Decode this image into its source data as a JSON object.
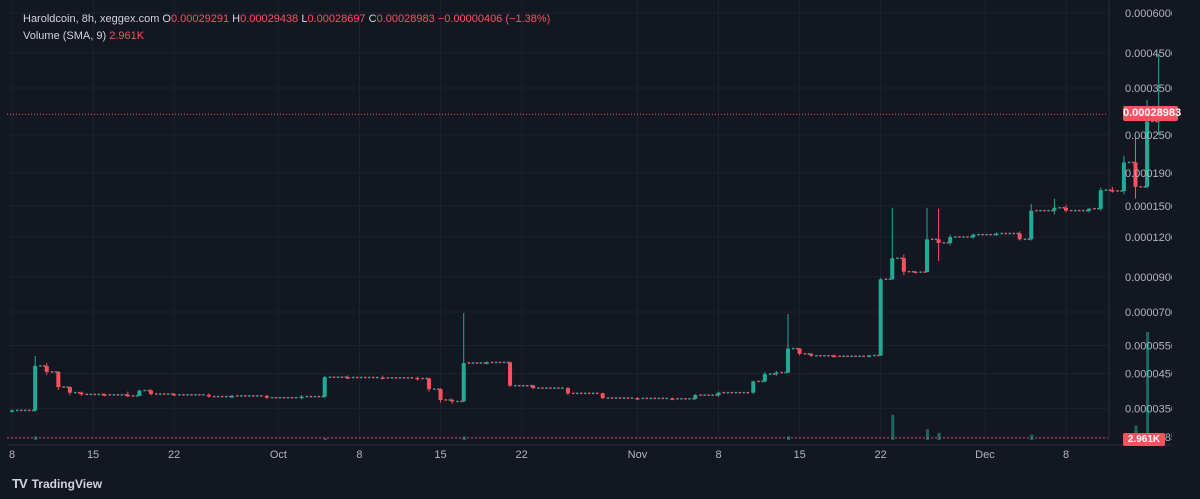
{
  "legend": {
    "symbol": "Haroldcoin, 8h, xeggex.com",
    "o_label": "O",
    "o_value": "0.00029291",
    "h_label": "H",
    "h_value": "0.00029438",
    "l_label": "L",
    "l_value": "0.00028697",
    "c_label": "C",
    "c_value": "0.00028983",
    "change": "−0.00000406 (−1.38%)",
    "volume_label": "Volume (SMA, 9)",
    "volume_value": "2.961K"
  },
  "price_tag": "0.00028983",
  "volume_tag": "2.961K",
  "brand": {
    "icon": "TV",
    "name": "TradingView"
  },
  "colors": {
    "bg": "#131722",
    "up": "#22ab94",
    "down": "#f7525f",
    "grid": "#1e222d",
    "text": "#b2b5be"
  },
  "chart_data": {
    "type": "candlestick",
    "scale": "log",
    "y_ticks": [
      "0.00060000",
      "0.00045000",
      "0.00035000",
      "0.00025000",
      "0.00019000",
      "0.00015000",
      "0.00012000",
      "0.00009000",
      "0.00007000",
      "0.00005500",
      "0.00004500",
      "0.00003500",
      "0.00002850"
    ],
    "y_tick_values": [
      0.0006,
      0.00045,
      0.00035,
      0.00025,
      0.00019,
      0.00015,
      0.00012,
      9e-05,
      7e-05,
      5.5e-05,
      4.5e-05,
      3.5e-05,
      2.85e-05
    ],
    "x_ticks": [
      "8",
      "15",
      "22",
      "Oct",
      "8",
      "15",
      "22",
      "Nov",
      "8",
      "15",
      "22",
      "Dec",
      "8"
    ],
    "x_tick_days": [
      8,
      15,
      22,
      31,
      38,
      45,
      52,
      62,
      69,
      76,
      83,
      92,
      99
    ],
    "last_price": 0.00028983,
    "candles": [
      [
        8,
        3.45e-05,
        3.48e-05,
        3.4e-05,
        3.45e-05
      ],
      [
        10,
        3.45e-05,
        5.1e-05,
        3.42e-05,
        4.75e-05
      ],
      [
        11,
        4.75e-05,
        4.85e-05,
        4.45e-05,
        4.55e-05
      ],
      [
        12,
        4.55e-05,
        4.58e-05,
        4e-05,
        4.08e-05
      ],
      [
        13,
        4.08e-05,
        4.1e-05,
        3.85e-05,
        3.92e-05
      ],
      [
        14,
        3.92e-05,
        3.95e-05,
        3.83e-05,
        3.87e-05
      ],
      [
        16,
        3.87e-05,
        3.9e-05,
        3.82e-05,
        3.86e-05
      ],
      [
        18,
        3.86e-05,
        3.95e-05,
        3.8e-05,
        3.83e-05
      ],
      [
        19,
        3.83e-05,
        4e-05,
        3.82e-05,
        3.98e-05
      ],
      [
        20,
        3.98e-05,
        4.02e-05,
        3.84e-05,
        3.88e-05
      ],
      [
        22,
        3.88e-05,
        3.91e-05,
        3.83e-05,
        3.86e-05
      ],
      [
        25,
        3.86e-05,
        3.9e-05,
        3.78e-05,
        3.81e-05
      ],
      [
        27,
        3.81e-05,
        3.86e-05,
        3.77e-05,
        3.83e-05
      ],
      [
        30,
        3.83e-05,
        3.86e-05,
        3.74e-05,
        3.78e-05
      ],
      [
        33,
        3.78e-05,
        3.85e-05,
        3.74e-05,
        3.81e-05
      ],
      [
        35,
        3.81e-05,
        4.42e-05,
        3.78e-05,
        4.38e-05
      ],
      [
        37,
        4.38e-05,
        4.44e-05,
        4.34e-05,
        4.37e-05
      ],
      [
        40,
        4.37e-05,
        4.43e-05,
        4.32e-05,
        4.36e-05
      ],
      [
        43,
        4.36e-05,
        4.4e-05,
        4.28e-05,
        4.34e-05
      ],
      [
        44,
        4.34e-05,
        4.37e-05,
        3.95e-05,
        4.02e-05
      ],
      [
        45,
        4.02e-05,
        4.05e-05,
        3.65e-05,
        3.72e-05
      ],
      [
        46,
        3.72e-05,
        3.76e-05,
        3.62e-05,
        3.68e-05
      ],
      [
        47,
        3.68e-05,
        6.95e-05,
        3.66e-05,
        4.85e-05
      ],
      [
        49,
        4.85e-05,
        4.92e-05,
        4.8e-05,
        4.87e-05
      ],
      [
        51,
        4.87e-05,
        4.9e-05,
        4.08e-05,
        4.12e-05
      ],
      [
        53,
        4.12e-05,
        4.15e-05,
        4.02e-05,
        4.05e-05
      ],
      [
        56,
        4.05e-05,
        4.08e-05,
        3.85e-05,
        3.9e-05
      ],
      [
        59,
        3.9e-05,
        3.92e-05,
        3.74e-05,
        3.77e-05
      ],
      [
        62,
        3.77e-05,
        3.8e-05,
        3.72e-05,
        3.76e-05
      ],
      [
        65,
        3.76e-05,
        3.79e-05,
        3.71e-05,
        3.75e-05
      ],
      [
        67,
        3.75e-05,
        3.88e-05,
        3.73e-05,
        3.85e-05
      ],
      [
        69,
        3.85e-05,
        3.95e-05,
        3.8e-05,
        3.92e-05
      ],
      [
        72,
        3.92e-05,
        4.28e-05,
        3.89e-05,
        4.25e-05
      ],
      [
        73,
        4.25e-05,
        4.55e-05,
        4.22e-05,
        4.48e-05
      ],
      [
        74,
        4.48e-05,
        4.58e-05,
        4.43e-05,
        4.53e-05
      ],
      [
        75,
        4.53e-05,
        6.9e-05,
        4.51e-05,
        5.38e-05
      ],
      [
        76,
        5.38e-05,
        5.4e-05,
        5.12e-05,
        5.18e-05
      ],
      [
        77,
        5.18e-05,
        5.22e-05,
        5.07e-05,
        5.11e-05
      ],
      [
        79,
        5.11e-05,
        5.16e-05,
        5.06e-05,
        5.09e-05
      ],
      [
        82,
        5.09e-05,
        5.14e-05,
        5.05e-05,
        5.12e-05
      ],
      [
        83,
        5.12e-05,
        8.95e-05,
        5.1e-05,
        8.85e-05
      ],
      [
        84,
        8.85e-05,
        0.000148,
        8.82e-05,
        0.000103
      ],
      [
        85,
        0.000103,
        0.000106,
        9.12e-05,
        9.35e-05
      ],
      [
        86,
        9.35e-05,
        9.4e-05,
        9.25e-05,
        9.32e-05
      ],
      [
        87,
        9.32e-05,
        0.000148,
        9.3e-05,
        0.000118
      ],
      [
        88,
        0.000118,
        0.000147,
        0.000101,
        0.000115
      ],
      [
        89,
        0.000115,
        0.000122,
        0.000113,
        0.00012
      ],
      [
        91,
        0.00012,
        0.000123,
        0.0001185,
        0.000122
      ],
      [
        93,
        0.000122,
        0.000124,
        0.000121,
        0.000123
      ],
      [
        95,
        0.000123,
        0.000125,
        0.000117,
        0.000118
      ],
      [
        96,
        0.000118,
        0.000152,
        0.000117,
        0.000145
      ],
      [
        98,
        0.000145,
        0.000158,
        0.000141,
        0.000148
      ],
      [
        99,
        0.000148,
        0.000151,
        0.000143,
        0.000145
      ],
      [
        101,
        0.000145,
        0.000148,
        0.000143,
        0.000147
      ],
      [
        102,
        0.000147,
        0.000171,
        0.000145,
        0.000168
      ],
      [
        103,
        0.000168,
        0.000172,
        0.000165,
        0.000167
      ],
      [
        104,
        0.000167,
        0.000215,
        0.000163,
        0.000205
      ],
      [
        105,
        0.000205,
        0.000245,
        0.000158,
        0.000172
      ],
      [
        106,
        0.000172,
        0.000321,
        0.00017,
        0.000275
      ],
      [
        107,
        0.000275,
        0.000448,
        0.00025,
        0.00029291
      ]
    ],
    "volume": [
      [
        10,
        2
      ],
      [
        35,
        1
      ],
      [
        47,
        2
      ],
      [
        75,
        2
      ],
      [
        84,
        14
      ],
      [
        87,
        6
      ],
      [
        88,
        4
      ],
      [
        96,
        3
      ],
      [
        105,
        8
      ],
      [
        106,
        60
      ],
      [
        107,
        2
      ]
    ]
  }
}
